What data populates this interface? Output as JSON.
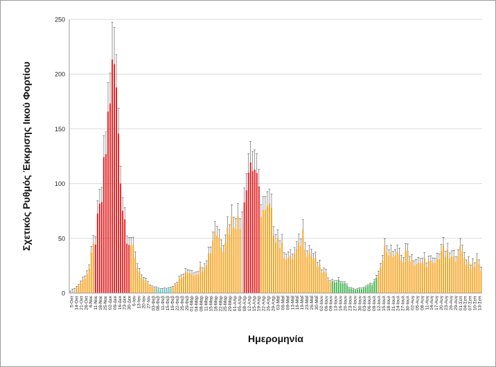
{
  "chart_data": {
    "type": "bar",
    "title": "",
    "xlabel": "Ημερομηνία",
    "ylabel": "Σχετικός Ρυθμός Έκκρισης Ιικού Φορτίου",
    "ylim": [
      0,
      250
    ],
    "yticks": [
      0,
      50,
      100,
      150,
      200,
      250
    ],
    "grid": "horizontal",
    "error_bars": true,
    "colors": {
      "red": "#e31a1c",
      "orange": "#f6a21e",
      "green": "#3bb44a",
      "teal": "#59c7c0",
      "gray": "#bdbdbd",
      "error": "#555555",
      "grid": "#d9d9d9"
    },
    "tick_labels": [
      "5-Οκτ",
      "14-Οκτ",
      "21-Οκτ",
      "28-Οκτ",
      "4-Νοε",
      "11-Νοε",
      "18-Νοε",
      "25-Νοε",
      "02-Δεκ",
      "09-Δεκ",
      "16-Δεκ",
      "23-Δεκ",
      "30-Δεκ",
      "6-Ιαν",
      "13-Ιαν",
      "20-Ιαν",
      "27-Ιαν",
      "03-Φεβ",
      "08-Φεβ",
      "11-Φεβ",
      "15-Φεβ",
      "19-Φεβ",
      "22-Φεβ",
      "25-Φεβ",
      "29-Φεβ",
      "01-Μαρ",
      "04-Μαρ",
      "08-Μαρ",
      "11-Μαρ",
      "15-Μαρ",
      "18-Μαρ",
      "22-Μαρ",
      "25-Μαρ",
      "29-Μαρ",
      "01-Απρ",
      "05-Απρ",
      "08-Απρ",
      "12-Απρ",
      "15-Απρ",
      "19-Απρ",
      "22-Απρ",
      "26-Απρ",
      "29-Απρ",
      "03-Μαΐ",
      "06-Μαΐ",
      "09-Μαΐ",
      "13-Μαΐ",
      "16-Μαΐ",
      "19-Μαΐ",
      "23-Μαΐ",
      "26-Μαΐ",
      "30-Μαΐ",
      "02-Ιουν",
      "06-Ιουν",
      "09-Ιουν",
      "13-Ιουν",
      "16-Ιουν",
      "20-Ιουν",
      "23-Ιουν",
      "27-Ιουν",
      "30-Ιουν",
      "03-Ιουλ",
      "06-Ιουλ",
      "09-Ιουλ",
      "12-Ιουλ",
      "15-Ιουλ",
      "18-Ιουλ",
      "21-Ιουλ",
      "24-Ιουλ",
      "27-Ιουλ",
      "30-Ιουλ",
      "02-Αυγ",
      "05-Αυγ",
      "08-Αυγ",
      "11-Αυγ",
      "14-Αυγ",
      "17-Αυγ",
      "20-Αυγ",
      "23-Αυγ",
      "26-Αυγ",
      "29-Αυγ",
      "01-Σεπ",
      "04-Σεπ",
      "07-Σεπ",
      "10-Σεπ",
      "13-Σεπ"
    ],
    "anchors": [
      [
        0,
        1,
        "gray"
      ],
      [
        3,
        5,
        "orange"
      ],
      [
        6,
        12,
        "orange"
      ],
      [
        9,
        22,
        "orange"
      ],
      [
        12,
        50,
        "red"
      ],
      [
        15,
        85,
        "red"
      ],
      [
        17,
        130,
        "red"
      ],
      [
        19,
        185,
        "red"
      ],
      [
        21,
        205,
        "red"
      ],
      [
        23,
        150,
        "red"
      ],
      [
        25,
        80,
        "red"
      ],
      [
        27,
        55,
        "red"
      ],
      [
        29,
        45,
        "orange"
      ],
      [
        31,
        30,
        "orange"
      ],
      [
        33,
        20,
        "orange"
      ],
      [
        35,
        12,
        "orange"
      ],
      [
        37,
        8,
        "orange"
      ],
      [
        39,
        5,
        "orange"
      ],
      [
        41,
        4,
        "teal"
      ],
      [
        44,
        3,
        "teal"
      ],
      [
        47,
        4,
        "teal"
      ],
      [
        49,
        6,
        "orange"
      ],
      [
        51,
        10,
        "orange"
      ],
      [
        53,
        14,
        "orange"
      ],
      [
        55,
        17,
        "orange"
      ],
      [
        57,
        20,
        "orange"
      ],
      [
        59,
        18,
        "orange"
      ],
      [
        61,
        20,
        "orange"
      ],
      [
        63,
        24,
        "orange"
      ],
      [
        65,
        30,
        "orange"
      ],
      [
        67,
        40,
        "orange"
      ],
      [
        69,
        60,
        "orange"
      ],
      [
        71,
        50,
        "orange"
      ],
      [
        73,
        45,
        "orange"
      ],
      [
        75,
        58,
        "orange"
      ],
      [
        77,
        65,
        "orange"
      ],
      [
        79,
        70,
        "orange"
      ],
      [
        81,
        60,
        "orange"
      ],
      [
        82,
        75,
        "gray"
      ],
      [
        83,
        90,
        "red"
      ],
      [
        84,
        110,
        "red"
      ],
      [
        86,
        120,
        "red"
      ],
      [
        88,
        115,
        "red"
      ],
      [
        89,
        95,
        "red"
      ],
      [
        91,
        80,
        "orange"
      ],
      [
        93,
        70,
        "orange"
      ],
      [
        95,
        75,
        "orange"
      ],
      [
        97,
        60,
        "orange"
      ],
      [
        99,
        50,
        "orange"
      ],
      [
        101,
        40,
        "orange"
      ],
      [
        103,
        35,
        "orange"
      ],
      [
        105,
        30,
        "orange"
      ],
      [
        107,
        35,
        "orange"
      ],
      [
        109,
        40,
        "orange"
      ],
      [
        111,
        55,
        "orange"
      ],
      [
        113,
        40,
        "orange"
      ],
      [
        115,
        35,
        "orange"
      ],
      [
        117,
        28,
        "orange"
      ],
      [
        119,
        22,
        "orange"
      ],
      [
        121,
        18,
        "orange"
      ],
      [
        123,
        14,
        "orange"
      ],
      [
        125,
        10,
        "green"
      ],
      [
        127,
        11,
        "green"
      ],
      [
        129,
        10,
        "green"
      ],
      [
        131,
        8,
        "green"
      ],
      [
        133,
        5,
        "green"
      ],
      [
        135,
        3,
        "green"
      ],
      [
        137,
        3,
        "green"
      ],
      [
        139,
        4,
        "green"
      ],
      [
        141,
        5,
        "green"
      ],
      [
        143,
        7,
        "green"
      ],
      [
        145,
        10,
        "green"
      ],
      [
        147,
        15,
        "orange"
      ],
      [
        149,
        30,
        "orange"
      ],
      [
        151,
        45,
        "orange"
      ],
      [
        153,
        35,
        "orange"
      ],
      [
        155,
        30,
        "orange"
      ],
      [
        157,
        35,
        "orange"
      ],
      [
        159,
        30,
        "orange"
      ],
      [
        161,
        38,
        "orange"
      ],
      [
        163,
        30,
        "orange"
      ],
      [
        165,
        27,
        "orange"
      ],
      [
        167,
        25,
        "orange"
      ],
      [
        169,
        30,
        "orange"
      ],
      [
        171,
        27,
        "orange"
      ],
      [
        173,
        25,
        "orange"
      ],
      [
        175,
        30,
        "orange"
      ],
      [
        177,
        40,
        "orange"
      ],
      [
        179,
        35,
        "orange"
      ],
      [
        181,
        32,
        "orange"
      ],
      [
        183,
        30,
        "orange"
      ],
      [
        185,
        40,
        "orange"
      ],
      [
        187,
        35,
        "orange"
      ],
      [
        189,
        30,
        "orange"
      ],
      [
        191,
        25,
        "orange"
      ],
      [
        193,
        28,
        "orange"
      ],
      [
        195,
        25,
        "orange"
      ],
      [
        196,
        22,
        "orange"
      ]
    ]
  }
}
